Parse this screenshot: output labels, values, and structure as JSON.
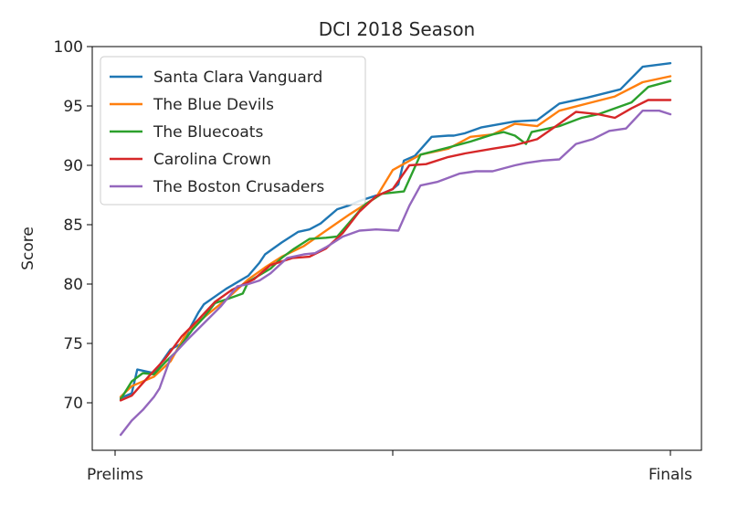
{
  "chart_data": {
    "type": "line",
    "title": "DCI 2018 Season",
    "xlabel": "",
    "ylabel": "Score",
    "ylim": [
      66,
      100
    ],
    "yticks": [
      70,
      75,
      80,
      85,
      90,
      95,
      100
    ],
    "xticks": [
      {
        "x": 0,
        "label": "Prelims"
      },
      {
        "x": 0.5,
        "label": ""
      },
      {
        "x": 1,
        "label": "Finals"
      }
    ],
    "grid": false,
    "legend_position": "upper-left",
    "series": [
      {
        "name": "Santa Clara Vanguard",
        "color": "#1f77b4",
        "x": [
          0.01,
          0.03,
          0.04,
          0.07,
          0.1,
          0.12,
          0.15,
          0.16,
          0.2,
          0.24,
          0.26,
          0.27,
          0.3,
          0.33,
          0.35,
          0.37,
          0.4,
          0.42,
          0.44,
          0.48,
          0.5,
          0.51,
          0.52,
          0.54,
          0.57,
          0.6,
          0.61,
          0.63,
          0.66,
          0.72,
          0.76,
          0.8,
          0.85,
          0.91,
          0.95,
          1.0
        ],
        "y": [
          70.4,
          70.8,
          72.8,
          72.5,
          74.5,
          75.0,
          77.6,
          78.3,
          79.6,
          80.7,
          81.8,
          82.5,
          83.5,
          84.4,
          84.6,
          85.1,
          86.3,
          86.6,
          87.0,
          87.6,
          88.0,
          88.4,
          90.4,
          90.8,
          92.4,
          92.5,
          92.5,
          92.7,
          93.2,
          93.7,
          93.8,
          95.2,
          95.7,
          96.4,
          98.3,
          98.6
        ]
      },
      {
        "name": "The Blue Devils",
        "color": "#ff7f0e",
        "x": [
          0.01,
          0.03,
          0.07,
          0.1,
          0.13,
          0.16,
          0.2,
          0.24,
          0.27,
          0.3,
          0.34,
          0.38,
          0.42,
          0.47,
          0.5,
          0.55,
          0.6,
          0.64,
          0.68,
          0.72,
          0.76,
          0.8,
          0.85,
          0.9,
          0.95,
          1.0
        ],
        "y": [
          70.5,
          71.4,
          72.2,
          73.5,
          76.0,
          77.2,
          78.7,
          80.4,
          81.4,
          82.3,
          83.2,
          84.5,
          85.8,
          87.3,
          89.6,
          90.9,
          91.4,
          92.4,
          92.6,
          93.5,
          93.3,
          94.6,
          95.2,
          95.8,
          97.0,
          97.5
        ]
      },
      {
        "name": "The Bluecoats",
        "color": "#2ca02c",
        "x": [
          0.01,
          0.03,
          0.05,
          0.07,
          0.09,
          0.11,
          0.14,
          0.16,
          0.18,
          0.2,
          0.23,
          0.24,
          0.28,
          0.3,
          0.32,
          0.35,
          0.38,
          0.4,
          0.45,
          0.48,
          0.52,
          0.55,
          0.6,
          0.64,
          0.68,
          0.7,
          0.72,
          0.74,
          0.75,
          0.8,
          0.84,
          0.87,
          0.9,
          0.93,
          0.96,
          1.0
        ],
        "y": [
          70.3,
          71.8,
          72.5,
          72.4,
          73.4,
          74.3,
          76.2,
          77.2,
          78.4,
          78.7,
          79.2,
          80.2,
          81.3,
          82.2,
          82.9,
          83.8,
          83.9,
          84.0,
          86.7,
          87.6,
          87.8,
          90.9,
          91.5,
          92.0,
          92.6,
          92.8,
          92.5,
          91.8,
          92.8,
          93.3,
          94.0,
          94.3,
          94.8,
          95.3,
          96.6,
          97.1
        ]
      },
      {
        "name": "Carolina Crown",
        "color": "#d62728",
        "x": [
          0.01,
          0.03,
          0.06,
          0.09,
          0.12,
          0.15,
          0.18,
          0.21,
          0.25,
          0.28,
          0.32,
          0.35,
          0.38,
          0.41,
          0.44,
          0.47,
          0.5,
          0.53,
          0.56,
          0.6,
          0.63,
          0.68,
          0.72,
          0.76,
          0.8,
          0.83,
          0.87,
          0.9,
          0.93,
          0.96,
          1.0
        ],
        "y": [
          70.2,
          70.6,
          72.2,
          73.7,
          75.6,
          77.0,
          78.5,
          79.5,
          80.4,
          81.6,
          82.2,
          82.3,
          83.0,
          84.3,
          86.1,
          87.4,
          88.0,
          90.0,
          90.1,
          90.7,
          91.0,
          91.4,
          91.7,
          92.2,
          93.5,
          94.5,
          94.3,
          94.0,
          94.8,
          95.5,
          95.5
        ]
      },
      {
        "name": "The Boston Crusaders",
        "color": "#9467bd",
        "x": [
          0.01,
          0.03,
          0.05,
          0.07,
          0.08,
          0.1,
          0.13,
          0.16,
          0.19,
          0.22,
          0.24,
          0.26,
          0.28,
          0.31,
          0.34,
          0.36,
          0.38,
          0.41,
          0.44,
          0.47,
          0.51,
          0.53,
          0.55,
          0.58,
          0.62,
          0.65,
          0.68,
          0.72,
          0.74,
          0.77,
          0.8,
          0.83,
          0.86,
          0.89,
          0.92,
          0.95,
          0.98,
          1.0
        ],
        "y": [
          67.3,
          68.5,
          69.4,
          70.5,
          71.2,
          73.8,
          75.3,
          76.7,
          78.1,
          79.8,
          80.0,
          80.3,
          80.9,
          82.2,
          82.5,
          82.6,
          83.1,
          84.0,
          84.5,
          84.6,
          84.5,
          86.6,
          88.3,
          88.6,
          89.3,
          89.5,
          89.5,
          90.0,
          90.2,
          90.4,
          90.5,
          91.8,
          92.2,
          92.9,
          93.1,
          94.6,
          94.6,
          94.3
        ]
      }
    ]
  }
}
